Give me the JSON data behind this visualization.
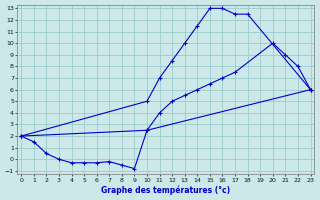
{
  "xlabel": "Graphe des températures (°c)",
  "bg_color": "#cce8e8",
  "grid_color": "#99cccc",
  "line_color": "#0000cc",
  "ylim": [
    -1,
    13
  ],
  "xlim": [
    0,
    23
  ],
  "yticks": [
    -1,
    0,
    1,
    2,
    3,
    4,
    5,
    6,
    7,
    8,
    9,
    10,
    11,
    12,
    13
  ],
  "xticks": [
    0,
    1,
    2,
    3,
    4,
    5,
    6,
    7,
    8,
    9,
    10,
    11,
    12,
    13,
    14,
    15,
    16,
    17,
    18,
    19,
    20,
    21,
    22,
    23
  ],
  "line1_x": [
    0,
    10,
    11,
    12,
    13,
    14,
    15,
    16,
    17,
    18,
    23
  ],
  "line1_y": [
    2,
    5,
    7,
    8.5,
    10,
    11.5,
    13,
    13,
    12.5,
    12.5,
    6
  ],
  "line2_x": [
    0,
    10,
    11,
    12,
    13,
    14,
    15,
    16,
    17,
    20,
    21,
    22,
    23
  ],
  "line2_y": [
    2,
    2.5,
    4,
    5,
    5.5,
    6,
    6.5,
    7,
    7.5,
    10,
    9,
    8,
    6
  ],
  "line3_x": [
    0,
    1,
    2,
    3,
    4,
    5,
    6,
    7,
    8,
    9,
    10,
    23
  ],
  "line3_y": [
    2,
    1.5,
    0.5,
    0,
    -0.3,
    -0.3,
    -0.3,
    -0.2,
    -0.5,
    -0.8,
    2.5,
    6
  ]
}
